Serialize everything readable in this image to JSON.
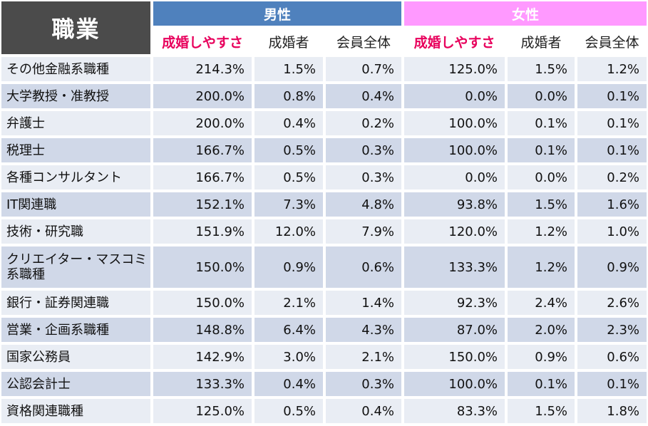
{
  "header": {
    "corner": "職業",
    "male": "男性",
    "female": "女性",
    "subcolumns": [
      "成婚しやすさ",
      "成婚者",
      "会員全体"
    ]
  },
  "colors": {
    "male": "#4f81bd",
    "female": "#ff99ff",
    "highlight": "#e8005c",
    "corner": "#4b4b4b"
  },
  "rows": [
    {
      "job": "その他金融系職種",
      "m": [
        "214.3%",
        "1.5%",
        "0.7%"
      ],
      "f": [
        "125.0%",
        "1.5%",
        "1.2%"
      ]
    },
    {
      "job": "大学教授・准教授",
      "m": [
        "200.0%",
        "0.8%",
        "0.4%"
      ],
      "f": [
        "0.0%",
        "0.0%",
        "0.1%"
      ]
    },
    {
      "job": "弁護士",
      "m": [
        "200.0%",
        "0.4%",
        "0.2%"
      ],
      "f": [
        "100.0%",
        "0.1%",
        "0.1%"
      ]
    },
    {
      "job": "税理士",
      "m": [
        "166.7%",
        "0.5%",
        "0.3%"
      ],
      "f": [
        "100.0%",
        "0.1%",
        "0.1%"
      ]
    },
    {
      "job": "各種コンサルタント",
      "m": [
        "166.7%",
        "0.5%",
        "0.3%"
      ],
      "f": [
        "0.0%",
        "0.0%",
        "0.2%"
      ]
    },
    {
      "job": "IT関連職",
      "m": [
        "152.1%",
        "7.3%",
        "4.8%"
      ],
      "f": [
        "93.8%",
        "1.5%",
        "1.6%"
      ]
    },
    {
      "job": "技術・研究職",
      "m": [
        "151.9%",
        "12.0%",
        "7.9%"
      ],
      "f": [
        "120.0%",
        "1.2%",
        "1.0%"
      ]
    },
    {
      "job": "クリエイター・マスコミ系職種",
      "m": [
        "150.0%",
        "0.9%",
        "0.6%"
      ],
      "f": [
        "133.3%",
        "1.2%",
        "0.9%"
      ]
    },
    {
      "job": "銀行・証券関連職",
      "m": [
        "150.0%",
        "2.1%",
        "1.4%"
      ],
      "f": [
        "92.3%",
        "2.4%",
        "2.6%"
      ]
    },
    {
      "job": "営業・企画系職種",
      "m": [
        "148.8%",
        "6.4%",
        "4.3%"
      ],
      "f": [
        "87.0%",
        "2.0%",
        "2.3%"
      ]
    },
    {
      "job": "国家公務員",
      "m": [
        "142.9%",
        "3.0%",
        "2.1%"
      ],
      "f": [
        "150.0%",
        "0.9%",
        "0.6%"
      ]
    },
    {
      "job": "公認会計士",
      "m": [
        "133.3%",
        "0.4%",
        "0.3%"
      ],
      "f": [
        "100.0%",
        "0.1%",
        "0.1%"
      ]
    },
    {
      "job": "資格関連職種",
      "m": [
        "125.0%",
        "0.5%",
        "0.4%"
      ],
      "f": [
        "83.3%",
        "1.5%",
        "1.8%"
      ]
    }
  ]
}
